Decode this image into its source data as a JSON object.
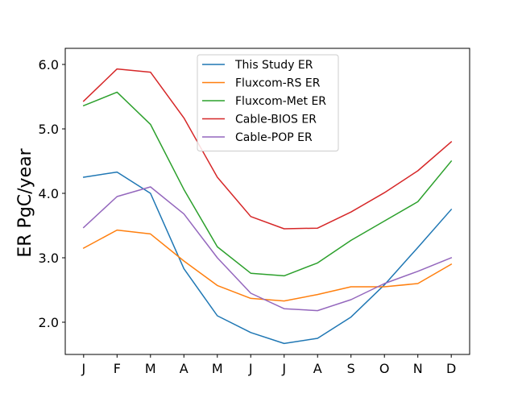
{
  "chart_data": {
    "type": "line",
    "categories": [
      "J",
      "F",
      "M",
      "A",
      "M",
      "J",
      "J",
      "A",
      "S",
      "O",
      "N",
      "D"
    ],
    "ylabel": "ER PgC/year",
    "xlabel": "",
    "ylim": [
      1.5,
      6.25
    ],
    "yticks": [
      2.0,
      3.0,
      4.0,
      5.0,
      6.0
    ],
    "ytick_labels": [
      "2.0",
      "3.0",
      "4.0",
      "5.0",
      "6.0"
    ],
    "grid": false,
    "legend_position": "top-center",
    "series": [
      {
        "name": "This Study ER",
        "color": "#1f77b4",
        "values": [
          4.25,
          4.33,
          4.0,
          2.83,
          2.1,
          1.84,
          1.67,
          1.75,
          2.08,
          2.58,
          3.16,
          3.75
        ]
      },
      {
        "name": "Fluxcom-RS ER",
        "color": "#ff7f0e",
        "values": [
          3.15,
          3.43,
          3.37,
          2.95,
          2.57,
          2.37,
          2.33,
          2.43,
          2.55,
          2.55,
          2.6,
          2.9
        ]
      },
      {
        "name": "Fluxcom-Met ER",
        "color": "#2ca02c",
        "values": [
          5.36,
          5.57,
          5.07,
          4.06,
          3.17,
          2.76,
          2.72,
          2.92,
          3.27,
          3.57,
          3.87,
          4.5
        ]
      },
      {
        "name": "Cable-BIOS ER",
        "color": "#d62728",
        "values": [
          5.43,
          5.93,
          5.88,
          5.17,
          4.25,
          3.64,
          3.45,
          3.46,
          3.71,
          4.01,
          4.35,
          4.8
        ]
      },
      {
        "name": "Cable-POP ER",
        "color": "#9467bd",
        "values": [
          3.47,
          3.95,
          4.1,
          3.68,
          3.0,
          2.45,
          2.21,
          2.18,
          2.35,
          2.6,
          2.79,
          3.0
        ]
      }
    ]
  }
}
